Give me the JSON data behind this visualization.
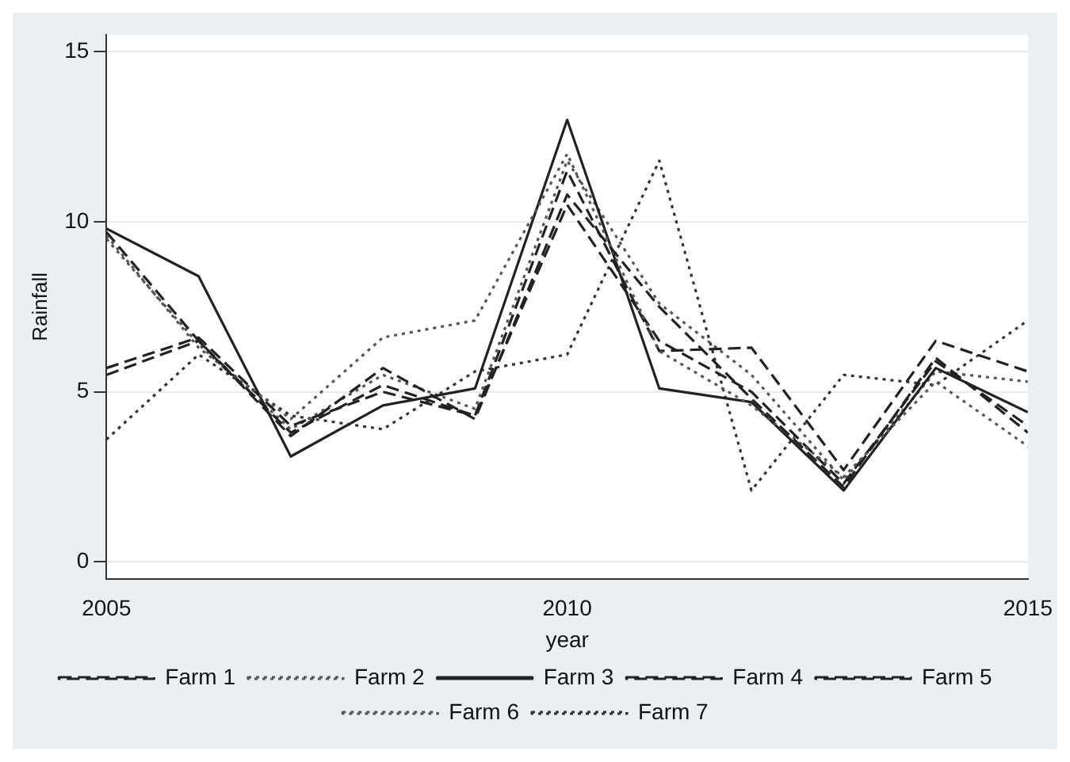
{
  "chart_data": {
    "type": "line",
    "xlabel": "year",
    "ylabel": "Rainfall",
    "x": [
      2005,
      2006,
      2007,
      2008,
      2009,
      2010,
      2011,
      2012,
      2013,
      2014,
      2015
    ],
    "xlim": [
      2005,
      2015
    ],
    "xticks": [
      2005,
      2010,
      2015
    ],
    "ylim": [
      -0.5,
      15.5
    ],
    "yticks": [
      0,
      5,
      10,
      15
    ],
    "grid": "y",
    "legend": "bottom",
    "marker": "none",
    "series": [
      {
        "name": "Farm 1",
        "color": "#222222",
        "line_style": "dashed",
        "values": [
          5.5,
          6.5,
          3.7,
          5.7,
          4.2,
          10.8,
          7.5,
          4.8,
          2.2,
          6.0,
          3.8
        ]
      },
      {
        "name": "Farm 2",
        "color": "#555555",
        "line_style": "dotted",
        "values": [
          9.6,
          6.3,
          4.2,
          6.6,
          7.1,
          12.0,
          6.2,
          4.6,
          2.5,
          5.3,
          3.4
        ]
      },
      {
        "name": "Farm 3",
        "color": "#222222",
        "line_style": "solid",
        "values": [
          9.8,
          8.4,
          3.1,
          4.6,
          5.1,
          13.0,
          5.1,
          4.7,
          2.1,
          5.7,
          4.4
        ]
      },
      {
        "name": "Farm 4",
        "color": "#222222",
        "line_style": "dashed",
        "values": [
          9.7,
          6.5,
          3.8,
          5.2,
          4.3,
          10.5,
          6.5,
          5.0,
          2.3,
          5.9,
          4.0
        ]
      },
      {
        "name": "Farm 5",
        "color": "#222222",
        "line_style": "dashed",
        "values": [
          5.7,
          6.6,
          4.0,
          5.0,
          4.3,
          11.5,
          6.2,
          6.3,
          2.7,
          6.5,
          5.6
        ]
      },
      {
        "name": "Farm 6",
        "color": "#555555",
        "line_style": "dotted",
        "values": [
          9.5,
          6.4,
          3.9,
          5.5,
          4.5,
          11.8,
          7.6,
          5.5,
          2.4,
          5.6,
          5.3
        ]
      },
      {
        "name": "Farm 7",
        "color": "#333333",
        "line_style": "dotted",
        "values": [
          3.6,
          6.1,
          4.3,
          3.9,
          5.6,
          6.1,
          11.8,
          2.1,
          5.5,
          5.2,
          7.1
        ]
      }
    ]
  }
}
